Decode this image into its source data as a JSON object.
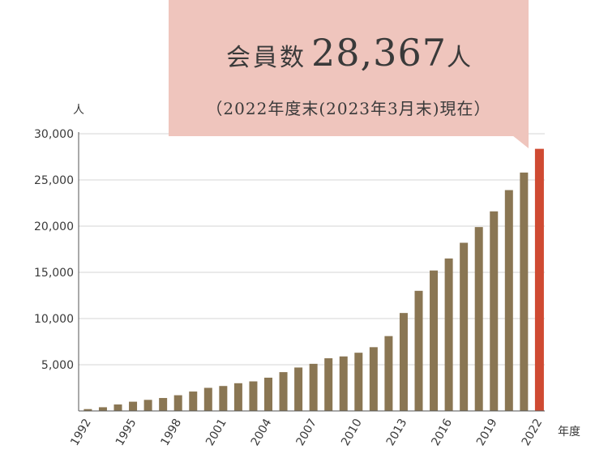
{
  "callout": {
    "label": "会員数",
    "number": "28,367",
    "unit": "人",
    "note": "（2022年度末(2023年3月末)現在）"
  },
  "axis": {
    "y_unit": "人",
    "x_unit": "年度"
  },
  "colors": {
    "bar": "#8a7653",
    "highlight": "#cf4a32",
    "callout_bg": "#efc5bd",
    "grid": "#d4d4d4"
  },
  "chart_data": {
    "type": "bar",
    "categories": [
      "1992",
      "1993",
      "1994",
      "1995",
      "1996",
      "1997",
      "1998",
      "1999",
      "2000",
      "2001",
      "2002",
      "2003",
      "2004",
      "2005",
      "2006",
      "2007",
      "2008",
      "2009",
      "2010",
      "2011",
      "2012",
      "2013",
      "2014",
      "2015",
      "2016",
      "2017",
      "2018",
      "2019",
      "2020",
      "2021",
      "2022"
    ],
    "values": [
      200,
      400,
      700,
      1000,
      1200,
      1400,
      1700,
      2100,
      2500,
      2700,
      3000,
      3200,
      3600,
      4200,
      4700,
      5100,
      5700,
      5900,
      6300,
      6900,
      8100,
      10600,
      13000,
      15200,
      16500,
      18200,
      19900,
      21600,
      23900,
      25800,
      28367
    ],
    "highlight_index": 30,
    "x_tick_labels": [
      "1992",
      "1995",
      "1998",
      "2001",
      "2004",
      "2007",
      "2010",
      "2013",
      "2016",
      "2019",
      "2022"
    ],
    "y_ticks": [
      5000,
      10000,
      15000,
      20000,
      25000,
      30000
    ],
    "y_tick_labels": [
      "5,000",
      "10,000",
      "15,000",
      "20,000",
      "25,000",
      "30,000"
    ],
    "ylim": [
      0,
      30000
    ],
    "ylabel": "人",
    "xlabel": "年度",
    "grid": true
  }
}
